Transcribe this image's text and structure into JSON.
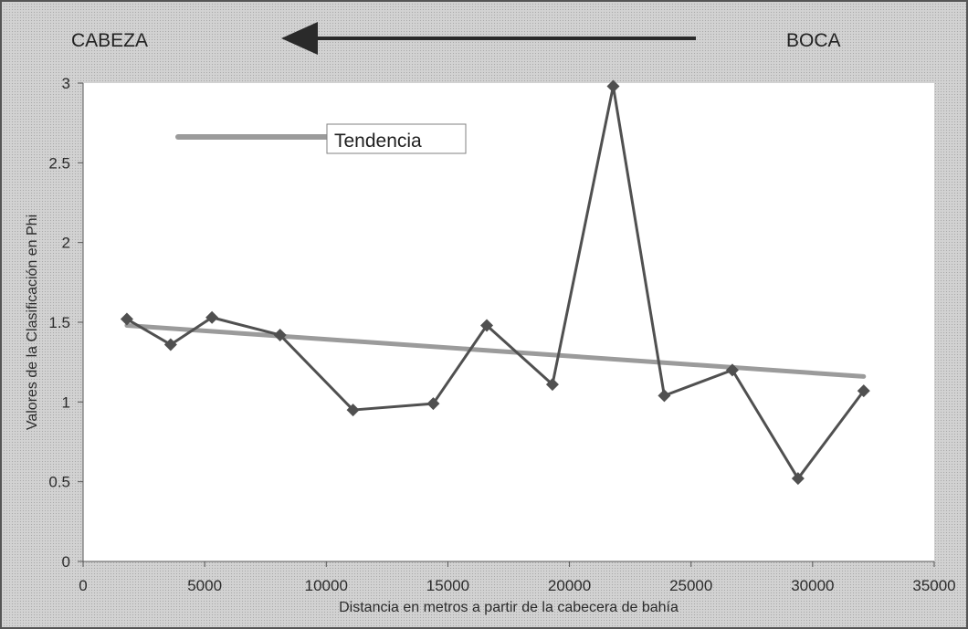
{
  "header": {
    "left_label": "CABEZA",
    "right_label": "BOCA"
  },
  "chart_data": {
    "type": "line",
    "xlabel": "Distancia en metros a partir de la cabecera de bahía",
    "ylabel": "Valores de la Clasificación en Phi",
    "xlim": [
      0,
      35000
    ],
    "ylim": [
      0,
      3
    ],
    "xticks": [
      0,
      5000,
      10000,
      15000,
      20000,
      25000,
      30000,
      35000
    ],
    "yticks": [
      0,
      0.5,
      1,
      1.5,
      2,
      2.5,
      3
    ],
    "ytick_labels": [
      "0",
      "0.5",
      "1",
      "1.5",
      "2",
      "2.5",
      "3"
    ],
    "grid": false,
    "legend_position": "top-left",
    "series": [
      {
        "x": [
          1800,
          3600,
          5300,
          8100,
          11100,
          14400,
          16600,
          19300,
          21800,
          23900,
          26700,
          29400,
          32100
        ],
        "y": [
          1.52,
          1.36,
          1.53,
          1.42,
          0.95,
          0.99,
          1.48,
          1.11,
          2.98,
          1.04,
          1.2,
          0.52,
          1.07
        ],
        "color": "#505050",
        "marker": "diamond"
      },
      {
        "name": "Tendencia",
        "x": [
          1800,
          32100
        ],
        "y": [
          1.48,
          1.16
        ],
        "color": "#9b9b9b"
      }
    ]
  }
}
